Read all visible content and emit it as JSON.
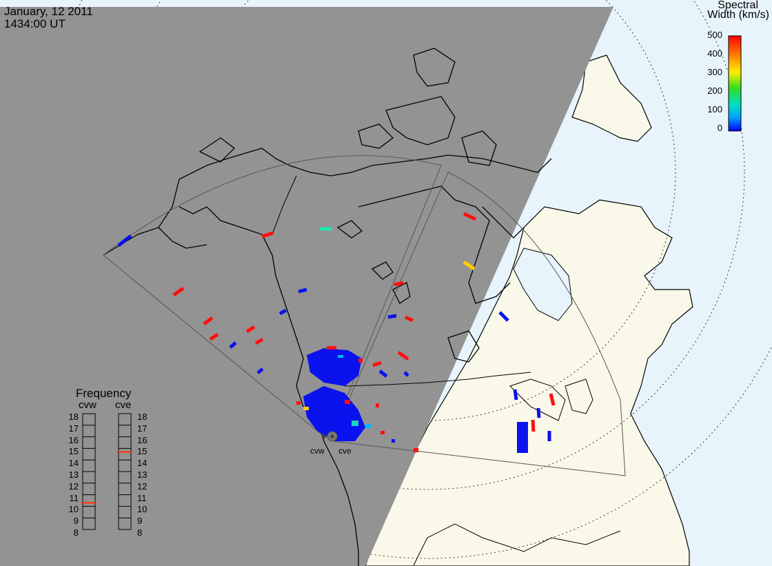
{
  "header": {
    "date": "January, 12 2011",
    "time": "1434:00 UT"
  },
  "colorbar": {
    "title_line1": "Spectral",
    "title_line2": "Width (km/s)",
    "ticks": [
      "500",
      "400",
      "300",
      "200",
      "100",
      "0"
    ],
    "colors": [
      "#ff0000",
      "#ffcc00",
      "#22dd22",
      "#00e0c0",
      "#0000ff"
    ]
  },
  "frequency_panel": {
    "title": "Frequency",
    "radars": [
      "cvw",
      "cve"
    ],
    "scale": [
      "18",
      "17",
      "16",
      "15",
      "14",
      "13",
      "12",
      "11",
      "10",
      "9",
      "8"
    ],
    "cvw_mhz": 10.8,
    "cve_mhz": 15.2,
    "indicator_color": "#ff3300"
  },
  "radar_labels": {
    "west": "cvw",
    "east": "cve"
  },
  "colors": {
    "night": "#939393",
    "day_land": "#f9f8e9",
    "ocean": "#e8f4fc",
    "coast": "#000000",
    "fov": "#555555"
  }
}
